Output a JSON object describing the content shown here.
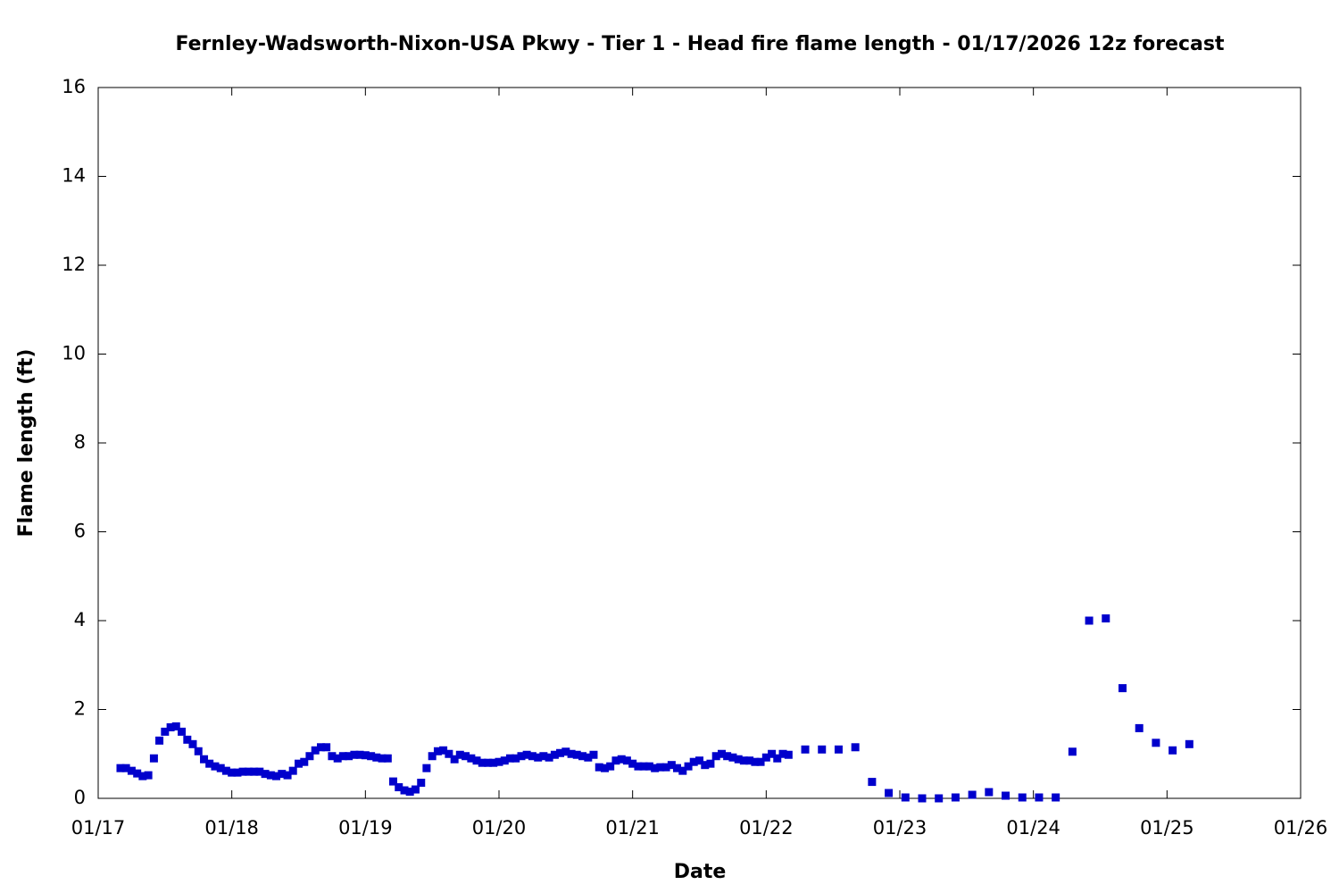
{
  "chart_data": {
    "type": "scatter",
    "title": "Fernley-Wadsworth-Nixon-USA Pkwy - Tier 1 - Head fire flame length - 01/17/2026 12z forecast",
    "xlabel": "Date",
    "ylabel": "Flame length (ft)",
    "color": "#0000cc",
    "xlim": [
      17,
      26
    ],
    "xticks": [
      {
        "value": 17,
        "label": "01/17"
      },
      {
        "value": 18,
        "label": "01/18"
      },
      {
        "value": 19,
        "label": "01/19"
      },
      {
        "value": 20,
        "label": "01/20"
      },
      {
        "value": 21,
        "label": "01/21"
      },
      {
        "value": 22,
        "label": "01/22"
      },
      {
        "value": 23,
        "label": "01/23"
      },
      {
        "value": 24,
        "label": "01/24"
      },
      {
        "value": 25,
        "label": "01/25"
      },
      {
        "value": 26,
        "label": "01/26"
      }
    ],
    "ylim": [
      0,
      16
    ],
    "yticks": [
      0,
      2,
      4,
      6,
      8,
      10,
      12,
      14,
      16
    ],
    "x": [
      17.167,
      17.208,
      17.25,
      17.292,
      17.333,
      17.375,
      17.417,
      17.458,
      17.5,
      17.542,
      17.583,
      17.625,
      17.667,
      17.708,
      17.75,
      17.792,
      17.833,
      17.875,
      17.917,
      17.958,
      18.0,
      18.042,
      18.083,
      18.125,
      18.167,
      18.208,
      18.25,
      18.292,
      18.333,
      18.375,
      18.417,
      18.458,
      18.5,
      18.542,
      18.583,
      18.625,
      18.667,
      18.708,
      18.75,
      18.792,
      18.833,
      18.875,
      18.917,
      18.958,
      19.0,
      19.042,
      19.083,
      19.125,
      19.167,
      19.208,
      19.25,
      19.292,
      19.333,
      19.375,
      19.417,
      19.458,
      19.5,
      19.542,
      19.583,
      19.625,
      19.667,
      19.708,
      19.75,
      19.792,
      19.833,
      19.875,
      19.917,
      19.958,
      20.0,
      20.042,
      20.083,
      20.125,
      20.167,
      20.208,
      20.25,
      20.292,
      20.333,
      20.375,
      20.417,
      20.458,
      20.5,
      20.542,
      20.583,
      20.625,
      20.667,
      20.708,
      20.75,
      20.792,
      20.833,
      20.875,
      20.917,
      20.958,
      21.0,
      21.042,
      21.083,
      21.125,
      21.167,
      21.208,
      21.25,
      21.292,
      21.333,
      21.375,
      21.417,
      21.458,
      21.5,
      21.542,
      21.583,
      21.625,
      21.667,
      21.708,
      21.75,
      21.792,
      21.833,
      21.875,
      21.917,
      21.958,
      22.0,
      22.042,
      22.083,
      22.125,
      22.167,
      22.292,
      22.417,
      22.542,
      22.667,
      22.792,
      22.917,
      23.042,
      23.167,
      23.292,
      23.417,
      23.542,
      23.667,
      23.792,
      23.917,
      24.042,
      24.167,
      24.292,
      24.417,
      24.542,
      24.667,
      24.792,
      24.917,
      25.042,
      25.167
    ],
    "values": [
      0.68,
      0.68,
      0.62,
      0.56,
      0.5,
      0.52,
      0.9,
      1.3,
      1.5,
      1.6,
      1.62,
      1.5,
      1.32,
      1.22,
      1.06,
      0.88,
      0.78,
      0.72,
      0.68,
      0.62,
      0.58,
      0.58,
      0.6,
      0.6,
      0.6,
      0.6,
      0.55,
      0.52,
      0.5,
      0.55,
      0.52,
      0.62,
      0.78,
      0.82,
      0.95,
      1.08,
      1.15,
      1.15,
      0.95,
      0.9,
      0.95,
      0.95,
      0.98,
      0.98,
      0.97,
      0.95,
      0.92,
      0.9,
      0.9,
      0.38,
      0.25,
      0.18,
      0.15,
      0.2,
      0.35,
      0.68,
      0.95,
      1.06,
      1.08,
      1.0,
      0.88,
      0.98,
      0.95,
      0.9,
      0.85,
      0.8,
      0.8,
      0.8,
      0.82,
      0.85,
      0.9,
      0.9,
      0.95,
      0.98,
      0.95,
      0.92,
      0.95,
      0.92,
      0.98,
      1.02,
      1.05,
      1.0,
      0.98,
      0.95,
      0.92,
      0.98,
      0.7,
      0.68,
      0.72,
      0.85,
      0.88,
      0.85,
      0.78,
      0.72,
      0.72,
      0.72,
      0.68,
      0.7,
      0.7,
      0.75,
      0.68,
      0.62,
      0.72,
      0.82,
      0.85,
      0.75,
      0.78,
      0.95,
      1.0,
      0.95,
      0.92,
      0.88,
      0.85,
      0.85,
      0.82,
      0.82,
      0.92,
      1.0,
      0.9,
      1.0,
      0.98,
      1.1,
      1.1,
      1.1,
      1.15,
      0.37,
      0.12,
      0.02,
      0.0,
      0.0,
      0.02,
      0.08,
      0.14,
      0.06,
      0.02,
      0.02,
      0.02,
      1.05,
      4.0,
      4.05,
      2.48,
      1.58,
      1.25,
      1.08,
      1.22
    ]
  }
}
